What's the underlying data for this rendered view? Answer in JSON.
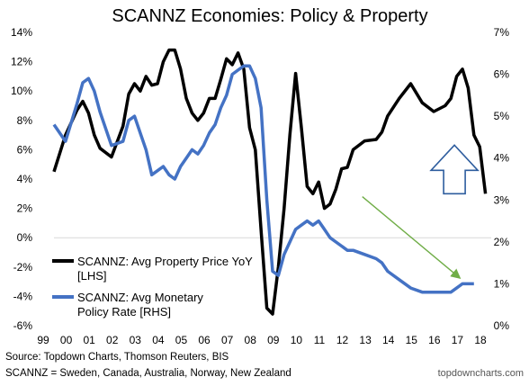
{
  "chart_data": {
    "type": "line",
    "title": "SCANNZ Economies: Policy & Property",
    "x": [
      1999,
      1999.5,
      2000,
      2000.25,
      2000.5,
      2000.75,
      2001,
      2001.5,
      2002,
      2002.25,
      2002.5,
      2002.75,
      2003,
      2003.25,
      2003.5,
      2003.75,
      2004,
      2004.25,
      2004.5,
      2004.75,
      2005,
      2005.25,
      2005.5,
      2005.75,
      2006,
      2006.25,
      2006.5,
      2006.75,
      2007,
      2007.25,
      2007.5,
      2007.75,
      2008,
      2008.25,
      2008.5,
      2008.75,
      2009,
      2009.25,
      2009.5,
      2009.75,
      2010,
      2010.25,
      2010.5,
      2010.75,
      2011,
      2011.25,
      2011.5,
      2011.75,
      2012,
      2012.5,
      2013,
      2013.25,
      2013.5,
      2014,
      2014.5,
      2015,
      2015.5,
      2016,
      2016.25,
      2016.5,
      2016.75,
      2017,
      2017.25,
      2017.5,
      2017.75,
      2018
    ],
    "xlim": [
      1999,
      2018
    ],
    "xticks": [
      "99",
      "00",
      "01",
      "02",
      "03",
      "04",
      "05",
      "06",
      "07",
      "08",
      "09",
      "10",
      "11",
      "12",
      "13",
      "14",
      "15",
      "16",
      "17",
      "18"
    ],
    "series": [
      {
        "name": "SCANNZ: Avg Property Price YoY [LHS]",
        "axis": "left",
        "color": "#000000",
        "values": [
          4.5,
          7.0,
          8.7,
          9.3,
          8.5,
          7.0,
          6.1,
          5.5,
          7.6,
          9.8,
          10.5,
          10.0,
          11.0,
          10.4,
          10.5,
          12.0,
          12.8,
          12.8,
          11.5,
          9.5,
          8.5,
          8.0,
          8.5,
          9.5,
          9.5,
          10.8,
          12.2,
          11.8,
          12.6,
          11.5,
          7.5,
          6.0,
          0.5,
          -4.8,
          -5.2,
          -2.0,
          2.0,
          7.0,
          11.2,
          7.5,
          3.5,
          3.0,
          3.8,
          2.0,
          2.3,
          3.3,
          4.7,
          4.8,
          6.0,
          6.6,
          6.7,
          7.2,
          8.3,
          9.5,
          10.5,
          9.2,
          8.6,
          9.0,
          9.5,
          11.0,
          11.5,
          10.2,
          7.0,
          6.2,
          3.0,
          null
        ],
        "values_note": ""
      },
      {
        "name": "SCANNZ: Avg Monetary Policy Rate [RHS]",
        "axis": "right",
        "color": "#4472C4",
        "values": [
          4.8,
          4.4,
          5.3,
          5.8,
          5.9,
          5.6,
          5.1,
          4.3,
          4.4,
          4.9,
          5.0,
          4.6,
          4.2,
          3.6,
          3.7,
          3.8,
          3.6,
          3.5,
          3.8,
          4.0,
          4.2,
          4.1,
          4.3,
          4.6,
          4.8,
          5.2,
          5.5,
          6.0,
          6.1,
          6.2,
          6.2,
          5.9,
          5.2,
          3.0,
          1.3,
          1.2,
          1.7,
          2.0,
          2.3,
          2.4,
          2.5,
          2.4,
          2.5,
          2.3,
          2.1,
          2.0,
          1.9,
          1.8,
          1.8,
          1.7,
          1.6,
          1.5,
          1.3,
          1.1,
          0.9,
          0.8,
          0.8,
          0.8,
          0.8,
          0.9,
          1.0,
          1.0,
          1.0,
          null,
          null,
          null
        ],
        "values_note": ""
      }
    ],
    "ylim_left": [
      -6,
      14
    ],
    "yticks_left": [
      "14%",
      "12%",
      "10%",
      "8%",
      "6%",
      "4%",
      "2%",
      "0%",
      "-2%",
      "-4%",
      "-6%"
    ],
    "ylim_right": [
      0,
      7
    ],
    "yticks_right": [
      "7%",
      "6%",
      "5%",
      "4%",
      "3%",
      "2%",
      "1%",
      "0%"
    ],
    "grid": false,
    "zero_line": true,
    "legend": "bottom-left",
    "annotations": [
      {
        "type": "arrow-up",
        "shape": "hollow",
        "color": "#2E5D9E",
        "x": 2016.4,
        "y_left": 3.0
      },
      {
        "type": "arrow",
        "color": "#70AD47",
        "from": [
          2012.4,
          2.8
        ],
        "to": [
          2016.6,
          -2.7
        ]
      }
    ]
  },
  "footer": {
    "source": "Source: Topdown Charts, Thomson Reuters, BIS",
    "note": "SCANNZ = Sweden, Canada, Australia, Norway, New Zealand",
    "watermark": "topdowncharts.com"
  }
}
